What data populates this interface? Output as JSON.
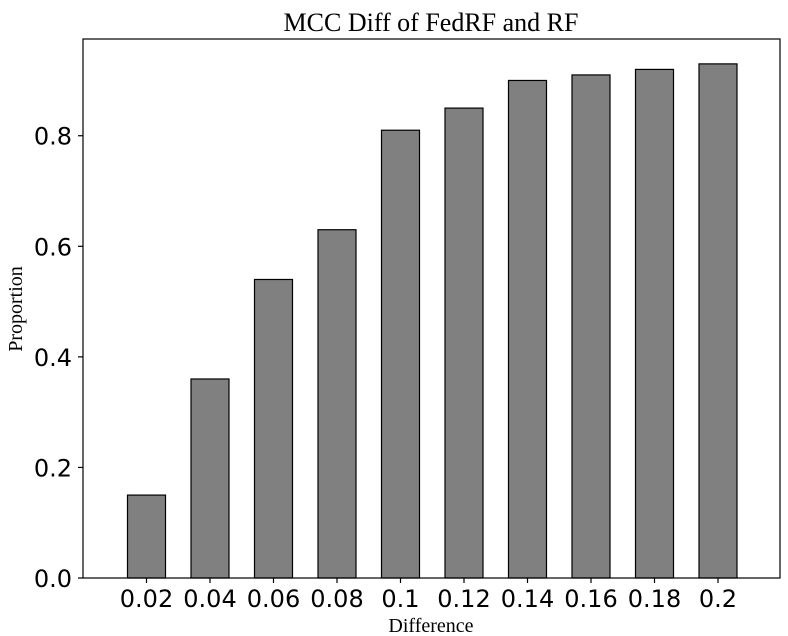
{
  "chart_data": {
    "type": "bar",
    "title": "MCC Diff of FedRF and RF",
    "xlabel": "Difference",
    "ylabel": "Proportion",
    "categories": [
      "0.02",
      "0.04",
      "0.06",
      "0.08",
      "0.1",
      "0.12",
      "0.14",
      "0.16",
      "0.18",
      "0.2"
    ],
    "values": [
      0.15,
      0.36,
      0.54,
      0.63,
      0.81,
      0.85,
      0.9,
      0.91,
      0.92,
      0.93
    ],
    "ylim": [
      0,
      0.975
    ],
    "yticks": [
      0.0,
      0.2,
      0.4,
      0.6,
      0.8
    ],
    "ytick_labels": [
      "0.0",
      "0.2",
      "0.4",
      "0.6",
      "0.8"
    ],
    "bar_color": "#808080",
    "bar_edge_color": "#000000",
    "grid": false,
    "legend": "none"
  }
}
